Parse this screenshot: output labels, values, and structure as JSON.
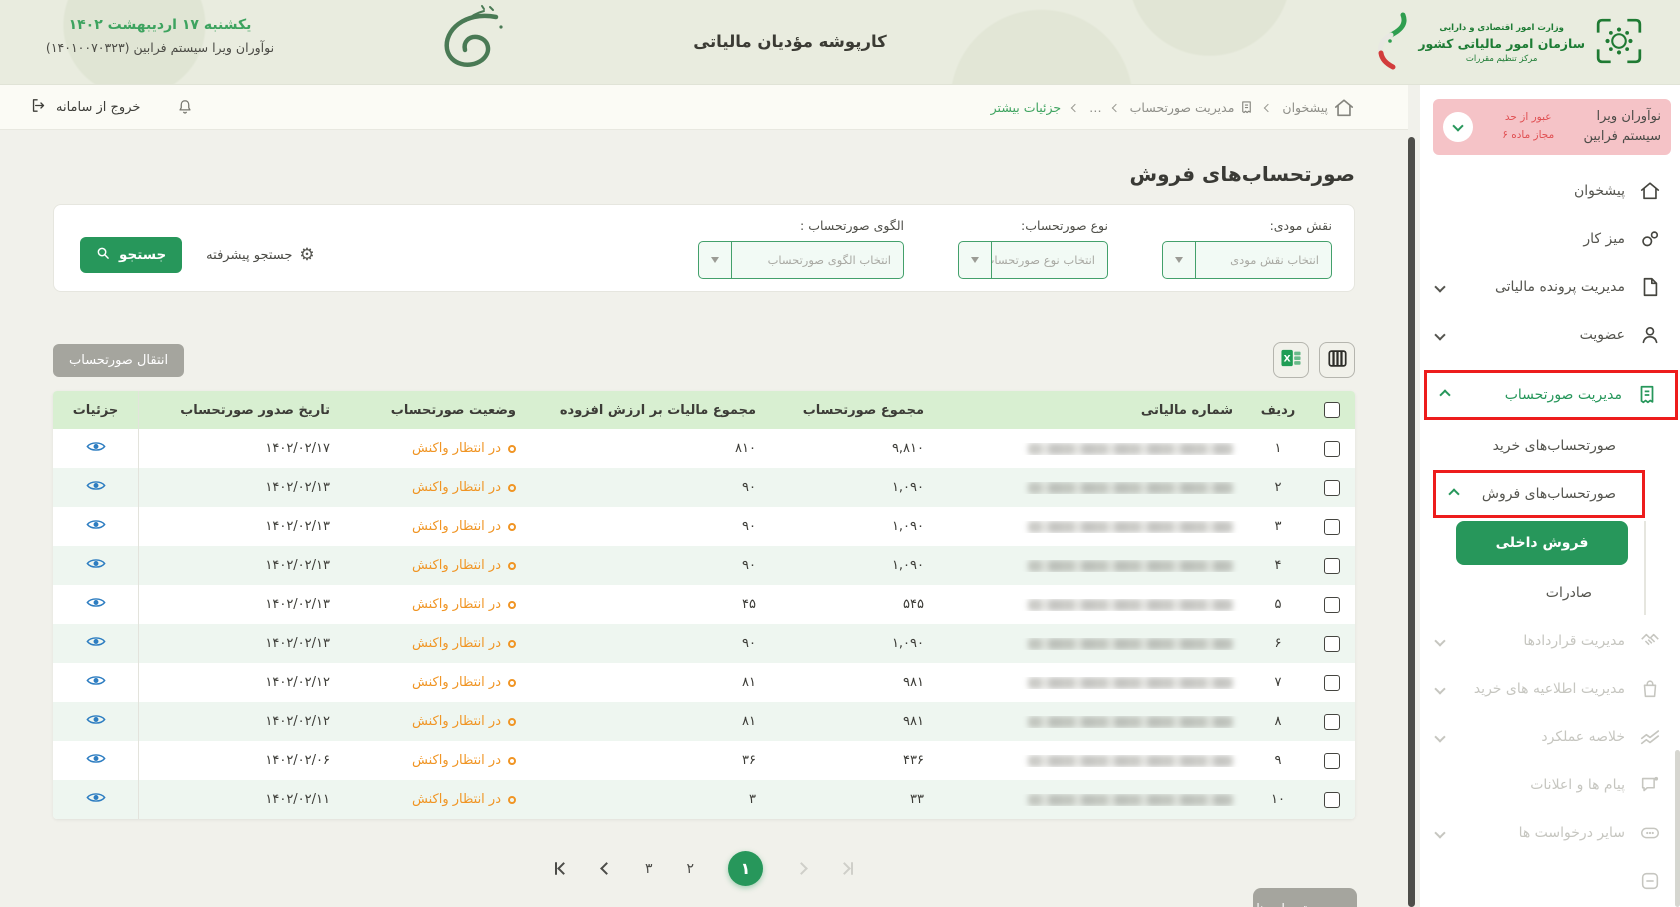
{
  "colors": {
    "accent_green": "#27975b",
    "status_orange": "#f09524",
    "annotation_red": "#ed1c1c",
    "eye_blue": "#2d7dc1",
    "warn_pink": "#f5c3c7"
  },
  "header": {
    "date": "یکشنبه ۱۷ اردیبهشت ۱۴۰۲",
    "org": "نوآوران ویرا سیستم فرابین (۱۴۰۱۰۰۷۰۳۲۳)",
    "title": "کارپوشه مؤدیان مالیاتی",
    "ministry": {
      "line1": "وزارت امور اقتصادی و دارایی",
      "line2": "سازمان امور مالیاتی کشور",
      "line3": "مرکز تنظیم مقررات"
    }
  },
  "topbar": {
    "logout": "خروج از سامانه",
    "breadcrumb": [
      {
        "label": "پیشخوان",
        "icon": "home-icon"
      },
      {
        "label": "مدیریت صورتحساب",
        "icon": "invoice-icon"
      },
      {
        "label": "…"
      },
      {
        "label": "جزئیات بیشتر",
        "green": true
      }
    ]
  },
  "sidebar": {
    "user_card": {
      "name1": "نوآوران ویرا",
      "name2": "سیستم فرابین",
      "warn1": "عبور از حد",
      "warn2": "مجاز ماده ۶"
    },
    "items": [
      {
        "label": "پیشخوان",
        "icon": "home-icon",
        "state": "normal"
      },
      {
        "label": "میز کار",
        "icon": "desk-icon",
        "state": "normal"
      },
      {
        "label": "مدیریت پرونده مالیاتی",
        "icon": "file-icon",
        "state": "normal",
        "chevron": "down"
      },
      {
        "label": "عضویت",
        "icon": "person-icon",
        "state": "normal",
        "chevron": "down"
      },
      {
        "label": "مدیریت صورتحساب",
        "icon": "receipt-icon",
        "state": "active",
        "chevron": "up",
        "annotated": true
      },
      {
        "label": "صورتحساب‌های خرید",
        "state": "sub"
      },
      {
        "label": "صورتحساب‌های فروش",
        "state": "sub",
        "chevron": "up",
        "annotated": true
      },
      {
        "label": "فروش داخلی",
        "state": "subsub-active"
      },
      {
        "label": "صادرات",
        "state": "subsub"
      },
      {
        "label": "مدیریت قراردادها",
        "icon": "handshake-icon",
        "state": "disabled",
        "chevron": "down"
      },
      {
        "label": "مدیریت اطلاعیه های خرید",
        "icon": "bag-icon",
        "state": "disabled",
        "chevron": "down"
      },
      {
        "label": "خلاصه عملکرد",
        "icon": "chart-icon",
        "state": "disabled",
        "chevron": "down"
      },
      {
        "label": "پیام ها و اعلانات",
        "icon": "chat-icon",
        "state": "disabled"
      },
      {
        "label": "سایر درخواست ها",
        "icon": "dots-icon",
        "state": "disabled",
        "chevron": "down"
      },
      {
        "label": "",
        "icon": "clipped-icon",
        "state": "disabled"
      }
    ]
  },
  "page": {
    "title": "صورتحساب‌های فروش"
  },
  "filters": {
    "fields": [
      {
        "label": "نقش مودی:",
        "placeholder": "انتخاب نقش مودی"
      },
      {
        "label": "نوع صورتحساب:",
        "placeholder": "انتخاب نوع صورتحساب"
      },
      {
        "label": "الگوی صورتحساب :",
        "placeholder": "انتخاب الگوی صورتحساب"
      }
    ],
    "advanced_label": "جستجو پیشرفته",
    "search_label": "جستجو"
  },
  "toolbar": {
    "transfer_label": "انتقال صورتحساب"
  },
  "table": {
    "headers": {
      "row": "ردیف",
      "tax_number": "شماره مالیاتی",
      "total": "مجموع صورتحساب",
      "vat": "مجموع مالیات بر ارزش افزوده",
      "status": "وضعیت صورتحساب",
      "issue_date": "تاریخ صدور صورتحساب",
      "details": "جزئیات"
    },
    "rows": [
      {
        "row": "۱",
        "total": "۹,۸۱۰",
        "vat": "۸۱۰",
        "status": "در انتظار واکنش",
        "date": "۱۴۰۲/۰۲/۱۷"
      },
      {
        "row": "۲",
        "total": "۱,۰۹۰",
        "vat": "۹۰",
        "status": "در انتظار واکنش",
        "date": "۱۴۰۲/۰۲/۱۳"
      },
      {
        "row": "۳",
        "total": "۱,۰۹۰",
        "vat": "۹۰",
        "status": "در انتظار واکنش",
        "date": "۱۴۰۲/۰۲/۱۳"
      },
      {
        "row": "۴",
        "total": "۱,۰۹۰",
        "vat": "۹۰",
        "status": "در انتظار واکنش",
        "date": "۱۴۰۲/۰۲/۱۳"
      },
      {
        "row": "۵",
        "total": "۵۴۵",
        "vat": "۴۵",
        "status": "در انتظار واکنش",
        "date": "۱۴۰۲/۰۲/۱۳"
      },
      {
        "row": "۶",
        "total": "۱,۰۹۰",
        "vat": "۹۰",
        "status": "در انتظار واکنش",
        "date": "۱۴۰۲/۰۲/۱۳"
      },
      {
        "row": "۷",
        "total": "۹۸۱",
        "vat": "۸۱",
        "status": "در انتظار واکنش",
        "date": "۱۴۰۲/۰۲/۱۲"
      },
      {
        "row": "۸",
        "total": "۹۸۱",
        "vat": "۸۱",
        "status": "در انتظار واکنش",
        "date": "۱۴۰۲/۰۲/۱۲"
      },
      {
        "row": "۹",
        "total": "۴۳۶",
        "vat": "۳۶",
        "status": "در انتظار واکنش",
        "date": "۱۴۰۲/۰۲/۰۶"
      },
      {
        "row": "۱۰",
        "total": "۳۳",
        "vat": "۳",
        "status": "در انتظار واکنش",
        "date": "۱۴۰۲/۰۲/۱۱"
      }
    ]
  },
  "pagination": {
    "page_3": "۳",
    "page_2": "۲",
    "page_1": "۱"
  },
  "floating_button": "جمع صورتحساب ها"
}
